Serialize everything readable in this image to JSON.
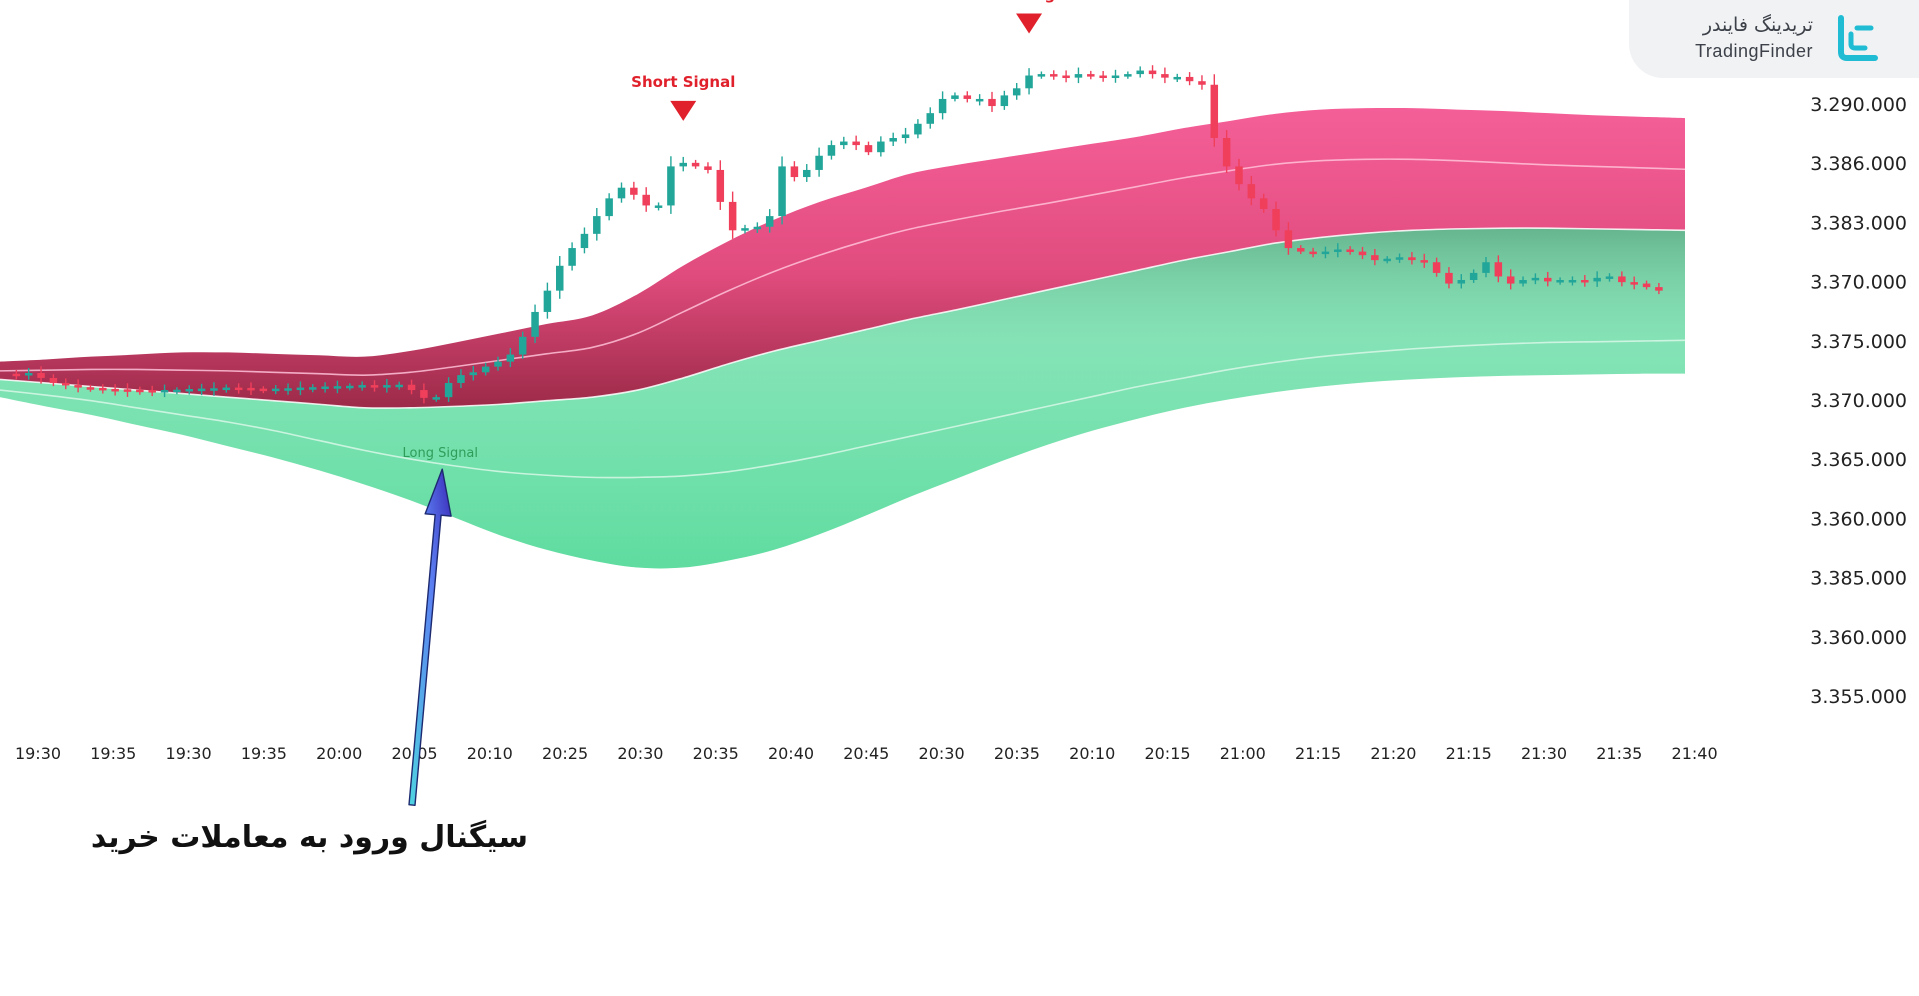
{
  "brand": {
    "name_fa": "تریدینگ فایندر",
    "name_en": "TradingFinder",
    "accent": "#20bcd4"
  },
  "caption": "سیگنال ورود به معاملات خرید",
  "colors": {
    "bull": "#23a69a",
    "bear": "#ef3f5a",
    "upper_band": "#f25d92",
    "upper_band_dark": "#a8304f",
    "lower_band": "#6ee3a9",
    "signal_short": "#e0212c",
    "signal_long": "#2f9d5a",
    "arrow": "#5a7ff0"
  },
  "chart_data": {
    "type": "candlestick",
    "y_axis_labels": [
      "3.290.000",
      "3.386.000",
      "3.383.000",
      "3.370.000",
      "3.375.000",
      "3.370.000",
      "3.365.000",
      "3.360.000",
      "3.385.000",
      "3.360.000",
      "3.355.000"
    ],
    "x_axis_labels": [
      "19:30",
      "19:35",
      "19:30",
      "19:35",
      "20:00",
      "20:05",
      "20:10",
      "20:25",
      "20:30",
      "20:35",
      "20:40",
      "20:45",
      "20:30",
      "20:35",
      "20:10",
      "20:15",
      "21:00",
      "21:15",
      "21:20",
      "21:15",
      "21:30",
      "21:35",
      "21:40"
    ],
    "signals": [
      {
        "type": "short",
        "label": "Short Signal",
        "x_index": 55
      },
      {
        "type": "long",
        "label": "Long Signal",
        "x_index": 35
      },
      {
        "type": "short",
        "label": "Short Signal",
        "x_index": 83
      }
    ],
    "levels": [
      3.68,
      3.67,
      3.69,
      3.62,
      3.55,
      3.52,
      3.49,
      3.48,
      3.465,
      3.46,
      3.455,
      3.45,
      3.445,
      3.45,
      3.455,
      3.465,
      3.47,
      3.475,
      3.485,
      3.48,
      3.47,
      3.465,
      3.47,
      3.475,
      3.485,
      3.49,
      3.5,
      3.505,
      3.51,
      3.52,
      3.515,
      3.52,
      3.525,
      3.45,
      3.34,
      3.35,
      3.55,
      3.66,
      3.7,
      3.78,
      3.85,
      3.95,
      4.2,
      4.55,
      4.85,
      5.2,
      5.45,
      5.65,
      5.9,
      6.15,
      6.3,
      6.2,
      6.05,
      6.05,
      6.6,
      6.65,
      6.6,
      6.55,
      6.1,
      5.7,
      5.73,
      5.75,
      5.9,
      6.6,
      6.45,
      6.55,
      6.75,
      6.9,
      6.95,
      6.9,
      6.8,
      6.95,
      7.0,
      7.05,
      7.2,
      7.35,
      7.55,
      7.6,
      7.55,
      7.55,
      7.45,
      7.6,
      7.7,
      7.88,
      7.9,
      7.88,
      7.85,
      7.9,
      7.88,
      7.85,
      7.88,
      7.9,
      7.95,
      7.9,
      7.85,
      7.86,
      7.8,
      7.75,
      7.0,
      6.6,
      6.35,
      6.15,
      6.0,
      5.7,
      5.45,
      5.4,
      5.38,
      5.4,
      5.43,
      5.4,
      5.35,
      5.28,
      5.3,
      5.32,
      5.28,
      5.25,
      5.1,
      4.95,
      5.0,
      5.1,
      5.25,
      5.05,
      4.95,
      5.0,
      5.03,
      4.98,
      5.0,
      5.0,
      4.98,
      5.03,
      5.05,
      4.97,
      4.95,
      4.9,
      4.85
    ],
    "band_upper_top": [
      3.85,
      3.88,
      3.92,
      3.95,
      3.98,
      3.98,
      3.96,
      3.94,
      3.92,
      4.0,
      4.12,
      4.25,
      4.38,
      4.5,
      4.8,
      5.2,
      5.55,
      5.85,
      6.1,
      6.3,
      6.5,
      6.62,
      6.72,
      6.82,
      6.92,
      7.02,
      7.14,
      7.24,
      7.34,
      7.4,
      7.42,
      7.42,
      7.4,
      7.38,
      7.35,
      7.32,
      7.3,
      7.28
    ],
    "band_upper_mid": [
      3.72,
      3.73,
      3.74,
      3.74,
      3.73,
      3.72,
      3.7,
      3.68,
      3.66,
      3.7,
      3.78,
      3.87,
      3.96,
      4.05,
      4.25,
      4.55,
      4.85,
      5.12,
      5.35,
      5.55,
      5.72,
      5.85,
      5.97,
      6.08,
      6.2,
      6.32,
      6.44,
      6.54,
      6.63,
      6.68,
      6.7,
      6.7,
      6.68,
      6.65,
      6.62,
      6.6,
      6.58,
      6.56
    ],
    "band_center": [
      3.6,
      3.55,
      3.5,
      3.45,
      3.4,
      3.35,
      3.3,
      3.25,
      3.2,
      3.2,
      3.22,
      3.25,
      3.3,
      3.35,
      3.45,
      3.62,
      3.82,
      4.0,
      4.15,
      4.3,
      4.45,
      4.58,
      4.72,
      4.86,
      5.0,
      5.14,
      5.28,
      5.4,
      5.52,
      5.6,
      5.66,
      5.7,
      5.72,
      5.73,
      5.73,
      5.72,
      5.71,
      5.7
    ],
    "band_lower_mid": [
      3.45,
      3.38,
      3.3,
      3.2,
      3.1,
      3.0,
      2.88,
      2.74,
      2.6,
      2.48,
      2.38,
      2.3,
      2.25,
      2.22,
      2.22,
      2.24,
      2.3,
      2.4,
      2.52,
      2.66,
      2.8,
      2.94,
      3.08,
      3.22,
      3.36,
      3.5,
      3.62,
      3.74,
      3.84,
      3.92,
      3.98,
      4.03,
      4.07,
      4.1,
      4.12,
      4.13,
      4.14,
      4.15
    ],
    "band_lower_bot": [
      3.35,
      3.22,
      3.1,
      2.96,
      2.82,
      2.66,
      2.5,
      2.32,
      2.12,
      1.9,
      1.65,
      1.4,
      1.2,
      1.05,
      0.95,
      0.95,
      1.05,
      1.2,
      1.42,
      1.68,
      1.95,
      2.2,
      2.45,
      2.68,
      2.88,
      3.05,
      3.2,
      3.32,
      3.42,
      3.5,
      3.56,
      3.6,
      3.63,
      3.65,
      3.66,
      3.67,
      3.68,
      3.68
    ]
  }
}
